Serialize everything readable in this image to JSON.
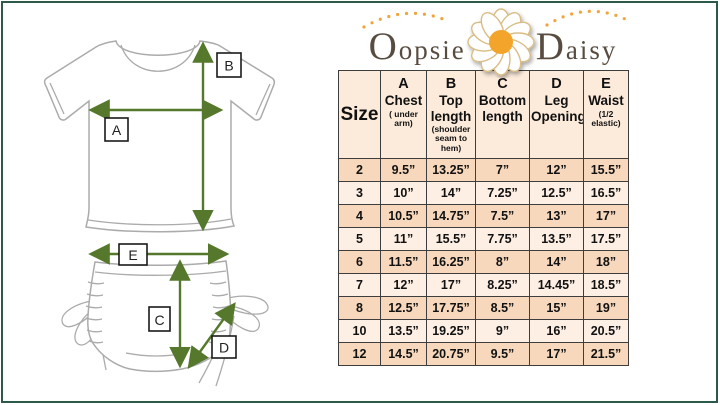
{
  "logo": {
    "word1": "Oopsie",
    "word2": "Daisy",
    "daisy_icon": "daisy-flower"
  },
  "diagram": {
    "labels": {
      "a": "A",
      "b": "B",
      "c": "C",
      "d": "D",
      "e": "E"
    }
  },
  "chart_data": {
    "type": "table",
    "title": "Oopsie Daisy size chart",
    "columns": [
      {
        "letter": "",
        "title": "Size",
        "subtitle": ""
      },
      {
        "letter": "A",
        "title": "Chest",
        "subtitle": "( under arm)"
      },
      {
        "letter": "B",
        "title": "Top length",
        "subtitle": "(shoulder seam to hem)"
      },
      {
        "letter": "C",
        "title": "Bottom length",
        "subtitle": ""
      },
      {
        "letter": "D",
        "title": "Leg Opening",
        "subtitle": ""
      },
      {
        "letter": "E",
        "title": "Waist",
        "subtitle": "(1/2 elastic)"
      }
    ],
    "rows": [
      [
        "2",
        "9.5”",
        "13.25”",
        "7”",
        "12”",
        "15.5”"
      ],
      [
        "3",
        "10”",
        "14”",
        "7.25”",
        "12.5”",
        "16.5”"
      ],
      [
        "4",
        "10.5”",
        "14.75”",
        "7.5”",
        "13”",
        "17”"
      ],
      [
        "5",
        "11”",
        "15.5”",
        "7.75”",
        "13.5”",
        "17.5”"
      ],
      [
        "6",
        "11.5”",
        "16.25”",
        "8”",
        "14”",
        "18”"
      ],
      [
        "7",
        "12”",
        "17”",
        "8.25”",
        "14.45”",
        "18.5”"
      ],
      [
        "8",
        "12.5”",
        "17.75”",
        "8.5”",
        "15”",
        "19”"
      ],
      [
        "10",
        "13.5”",
        "19.25”",
        "9”",
        "16”",
        "20.5”"
      ],
      [
        "12",
        "14.5”",
        "20.75”",
        "9.5”",
        "17”",
        "21.5”"
      ]
    ]
  },
  "colors": {
    "page_border": "#2d5948",
    "header_bg": "#fcebdb",
    "row_dark": "#f8d8bc",
    "row_light": "#fdefe4",
    "grid_line": "#3d3d3d",
    "arrow_green": "#55782c",
    "garment_outline": "#ababab",
    "logo_text": "#584c40",
    "logo_dots": "#f0a53c",
    "daisy_center": "#f3a42a",
    "daisy_petal_outline": "#d9bd85"
  }
}
